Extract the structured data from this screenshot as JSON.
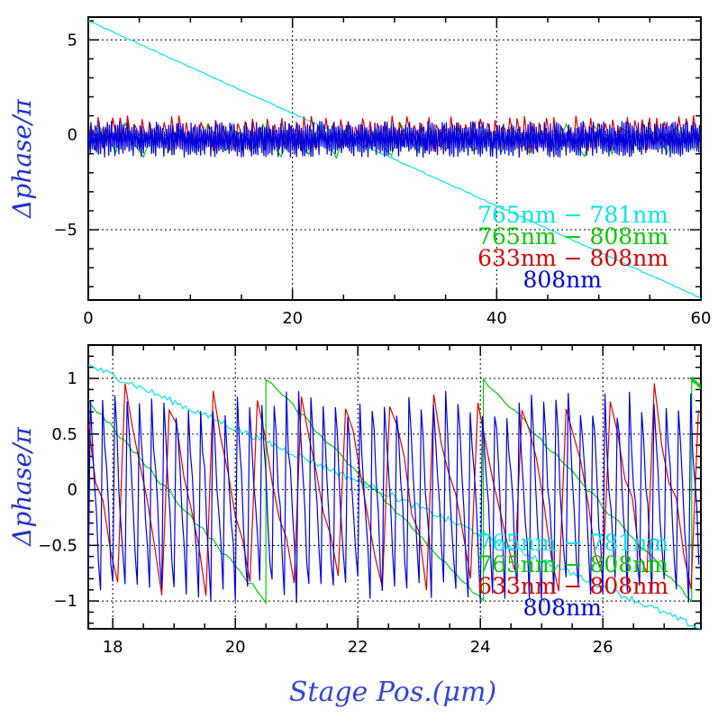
{
  "chart_data": [
    {
      "type": "line",
      "title": "",
      "xlabel": "",
      "ylabel": "Δphase/π",
      "xlim": [
        0,
        60
      ],
      "ylim": [
        -8.7,
        6.2
      ],
      "xticks": [
        0,
        20,
        40,
        60
      ],
      "yticks": [
        -5,
        0,
        5
      ],
      "grid": true,
      "legend_position": "bottom-right",
      "series": [
        {
          "name": "765nm − 781nm",
          "color": "#00e5e5",
          "kind": "linear",
          "start": [
            0,
            6.0
          ],
          "end": [
            60,
            -8.6
          ]
        },
        {
          "name": "765nm − 808nm",
          "color": "#00cc00",
          "kind": "sawtooth",
          "period_um": 2.7,
          "range": [
            -1,
            1
          ]
        },
        {
          "name": "633nm − 808nm",
          "color": "#dd0000",
          "kind": "sawtooth",
          "period_um": 0.72,
          "range": [
            -1,
            1
          ]
        },
        {
          "name": "808nm",
          "color": "#0000dd",
          "kind": "sawtooth",
          "period_um": 0.2,
          "range": [
            -1,
            1
          ]
        }
      ]
    },
    {
      "type": "line",
      "title": "",
      "xlabel": "Stage Pos.(μm)",
      "ylabel": "Δphase/π",
      "xlim": [
        17.6,
        27.6
      ],
      "ylim": [
        -1.25,
        1.3
      ],
      "xticks": [
        18,
        20,
        22,
        24,
        26
      ],
      "yticks": [
        -1,
        -0.5,
        0,
        0.5,
        1
      ],
      "ytick_labels": [
        "−1",
        "−0.5",
        "0",
        "0.5",
        "1"
      ],
      "grid": true,
      "legend_position": "bottom-right",
      "series": [
        {
          "name": "765nm − 781nm",
          "color": "#00e5e5",
          "kind": "linear",
          "x": [
            17.6,
            27.6
          ],
          "y": [
            1.12,
            -1.25
          ]
        },
        {
          "name": "765nm − 808nm",
          "color": "#00cc00",
          "kind": "sawtooth",
          "wrap_x": [
            20.5,
            24.05,
            27.45
          ],
          "y_after_wrap": 1.0,
          "y_before_wrap": -1.0,
          "start": [
            17.6,
            0.8
          ]
        },
        {
          "name": "633nm − 808nm",
          "color": "#dd0000",
          "kind": "sawtooth",
          "period_um": 0.72,
          "range": [
            -1,
            1
          ]
        },
        {
          "name": "808nm",
          "color": "#0000dd",
          "kind": "sawtooth",
          "period_um": 0.2,
          "range": [
            -1,
            1
          ]
        }
      ]
    }
  ],
  "legend_labels": [
    "765nm − 781nm",
    "765nm − 808nm",
    "633nm − 808nm",
    "808nm"
  ],
  "colors": {
    "cyan": "#00e5e5",
    "green": "#00cc00",
    "red": "#dd0000",
    "blue": "#0000dd"
  }
}
